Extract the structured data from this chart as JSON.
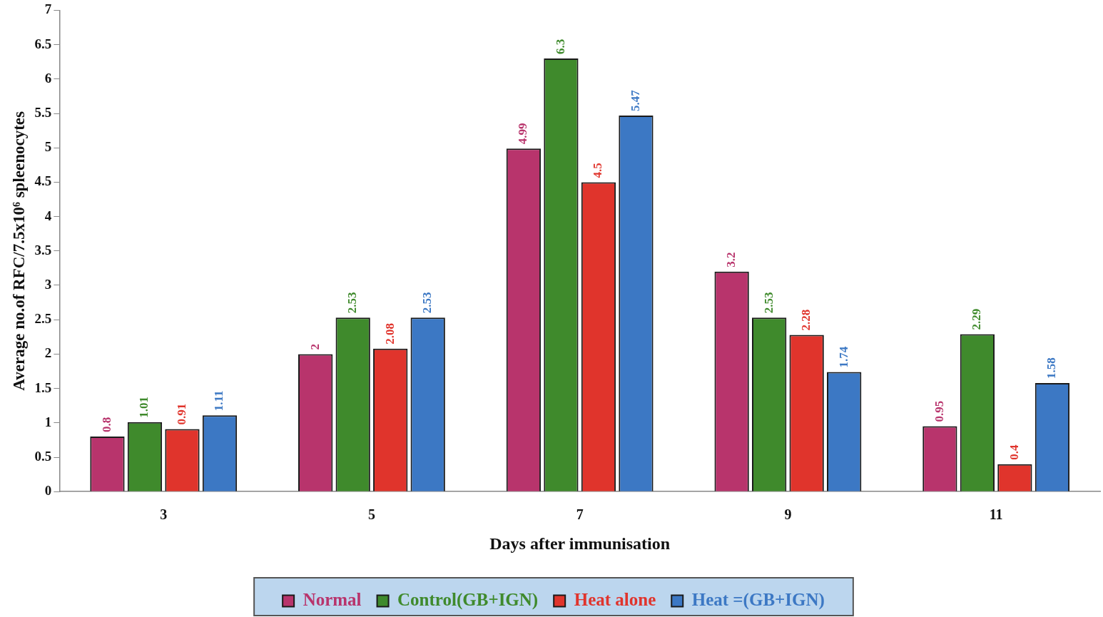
{
  "chart_data": {
    "type": "bar",
    "xlabel": "Days after immunisation",
    "ylabel": "Average no.of RFC/7.5x10⁶ spleenocytes",
    "categories": [
      "3",
      "5",
      "7",
      "9",
      "11"
    ],
    "series": [
      {
        "name": "Normal",
        "color": "#b8346c",
        "values": [
          0.8,
          2,
          4.99,
          3.2,
          0.95
        ]
      },
      {
        "name": "Control(GB+IGN)",
        "color": "#3f8a2c",
        "values": [
          1.01,
          2.53,
          6.3,
          2.53,
          2.29
        ]
      },
      {
        "name": "Heat alone",
        "color": "#e0342c",
        "values": [
          0.91,
          2.08,
          4.5,
          2.28,
          0.4
        ]
      },
      {
        "name": "Heat =(GB+IGN)",
        "color": "#3c78c4",
        "values": [
          1.11,
          2.53,
          5.47,
          1.74,
          1.58
        ]
      }
    ],
    "ylim": [
      0,
      7
    ],
    "yticks": [
      0,
      0.5,
      1,
      1.5,
      2,
      2.5,
      3,
      3.5,
      4,
      4.5,
      5,
      5.5,
      6,
      6.5,
      7
    ],
    "grid": false,
    "legend": "bottom",
    "data_labels": true
  }
}
